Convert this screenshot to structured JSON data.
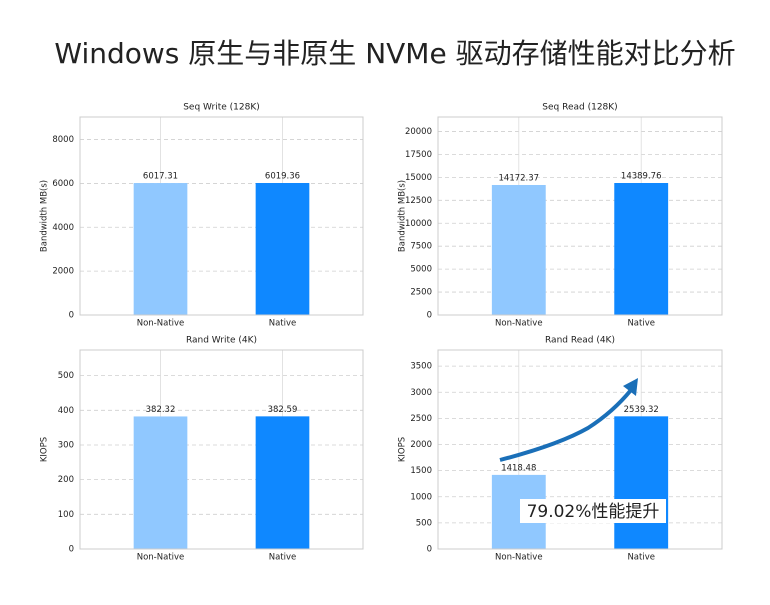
{
  "title": "Windows 原生与非原生 NVMe 驱动存储性能对比分析",
  "chart_data": [
    {
      "type": "bar",
      "title": "Seq Write (128K)",
      "ylabel": "Bandwidth MB(s)",
      "categories": [
        "Non-Native",
        "Native"
      ],
      "values": [
        6017.31,
        6019.36
      ],
      "colors": [
        "#90c8ff",
        "#0f88ff"
      ],
      "ylim": [
        0,
        9029
      ],
      "yticks": [
        0,
        2000,
        4000,
        6000,
        8000
      ],
      "grid": true
    },
    {
      "type": "bar",
      "title": "Seq Read (128K)",
      "ylabel": "Bandwidth MB(s)",
      "categories": [
        "Non-Native",
        "Native"
      ],
      "values": [
        14172.37,
        14389.76
      ],
      "colors": [
        "#90c8ff",
        "#0f88ff"
      ],
      "ylim": [
        0,
        21585
      ],
      "yticks": [
        0,
        2500,
        5000,
        7500,
        10000,
        12500,
        15000,
        17500,
        20000
      ],
      "grid": true
    },
    {
      "type": "bar",
      "title": "Rand Write (4K)",
      "ylabel": "KIOPS",
      "categories": [
        "Non-Native",
        "Native"
      ],
      "values": [
        382.32,
        382.59
      ],
      "colors": [
        "#90c8ff",
        "#0f88ff"
      ],
      "ylim": [
        0,
        574
      ],
      "yticks": [
        0,
        100,
        200,
        300,
        400,
        500
      ],
      "grid": true
    },
    {
      "type": "bar",
      "title": "Rand Read (4K)",
      "ylabel": "KIOPS",
      "categories": [
        "Non-Native",
        "Native"
      ],
      "values": [
        1418.48,
        2539.32
      ],
      "colors": [
        "#90c8ff",
        "#0f88ff"
      ],
      "ylim": [
        0,
        3809
      ],
      "yticks": [
        0,
        500,
        1000,
        1500,
        2000,
        2500,
        3000,
        3500
      ],
      "grid": true,
      "annotation": "79.02%性能提升"
    }
  ]
}
